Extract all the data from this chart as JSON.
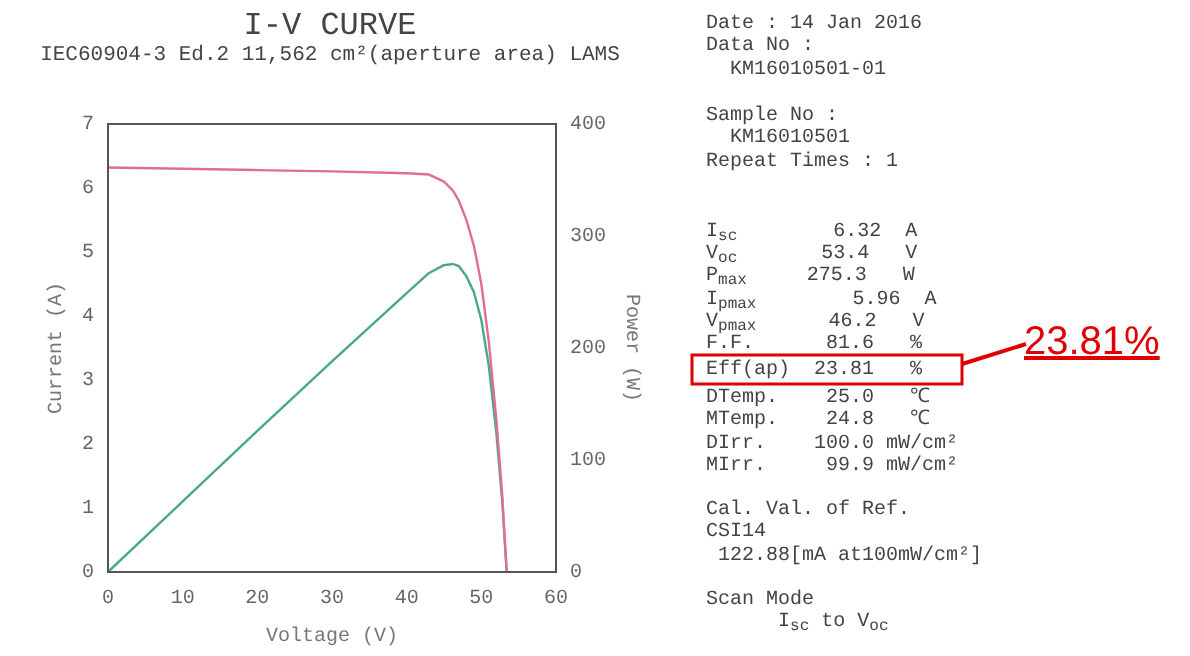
{
  "chart_data": {
    "type": "line",
    "title": "I-V CURVE",
    "subtitle": "IEC60904-3 Ed.2 11,562 cm²(aperture area) LAMS",
    "xlabel": "Voltage (V)",
    "ylabel": "Current (A)",
    "y2label": "Power (W)",
    "xlim": [
      0,
      60
    ],
    "xticks": [
      0,
      10,
      20,
      30,
      40,
      50,
      60
    ],
    "ylim": [
      0,
      7
    ],
    "yticks": [
      0,
      1,
      2,
      3,
      4,
      5,
      6,
      7
    ],
    "y2lim": [
      0,
      400
    ],
    "y2ticks": [
      0,
      100,
      200,
      300,
      400
    ],
    "grid": false,
    "legend": false,
    "marker": "none",
    "line_style": "solid",
    "series": [
      {
        "color": "#e0708a",
        "x": [
          0,
          10,
          20,
          30,
          40,
          43,
          45,
          46.2,
          47,
          48,
          49,
          50,
          51,
          52,
          52.8,
          53.4
        ],
        "values": [
          6.32,
          6.3,
          6.28,
          6.26,
          6.23,
          6.21,
          6.1,
          5.96,
          5.8,
          5.5,
          5.1,
          4.5,
          3.6,
          2.4,
          1.2,
          0
        ]
      },
      {
        "color": "#4aa88a",
        "axis": "y2",
        "x": [
          0,
          10,
          20,
          30,
          40,
          43,
          45,
          46.2,
          47,
          48,
          49,
          50,
          51,
          52,
          52.8,
          53.4
        ],
        "values": [
          0,
          63,
          126,
          188,
          249,
          267,
          274,
          275,
          273,
          264,
          250,
          225,
          184,
          125,
          63,
          0
        ]
      }
    ],
    "annotations": [
      "Date : 14 Jan 2016",
      "Data No :",
      "  KM16010501-01",
      "Sample No :",
      "  KM16010501",
      "Repeat Times : 1",
      "I$_{sc}$        6.32  A",
      "V$_{oc}$       53.4   V",
      "P$_{max}$     275.3   W",
      "I$_{pmax}$        5.96  A",
      "V$_{pmax}$      46.2   V",
      "F.F.      81.6   %",
      "Eff(ap)  23.81   %",
      "DTemp.    25.0   ℃",
      "MTemp.    24.8   ℃",
      "DIrr.    100.0 mW/cm²",
      "MIrr.     99.9 mW/cm²",
      "Cal. Val. of Ref.",
      "CSI14",
      " 122.88[mA at100mW/cm²]",
      "Scan Mode",
      "      I$_{sc}$ to V$_{oc}$",
      "23.81%"
    ]
  }
}
